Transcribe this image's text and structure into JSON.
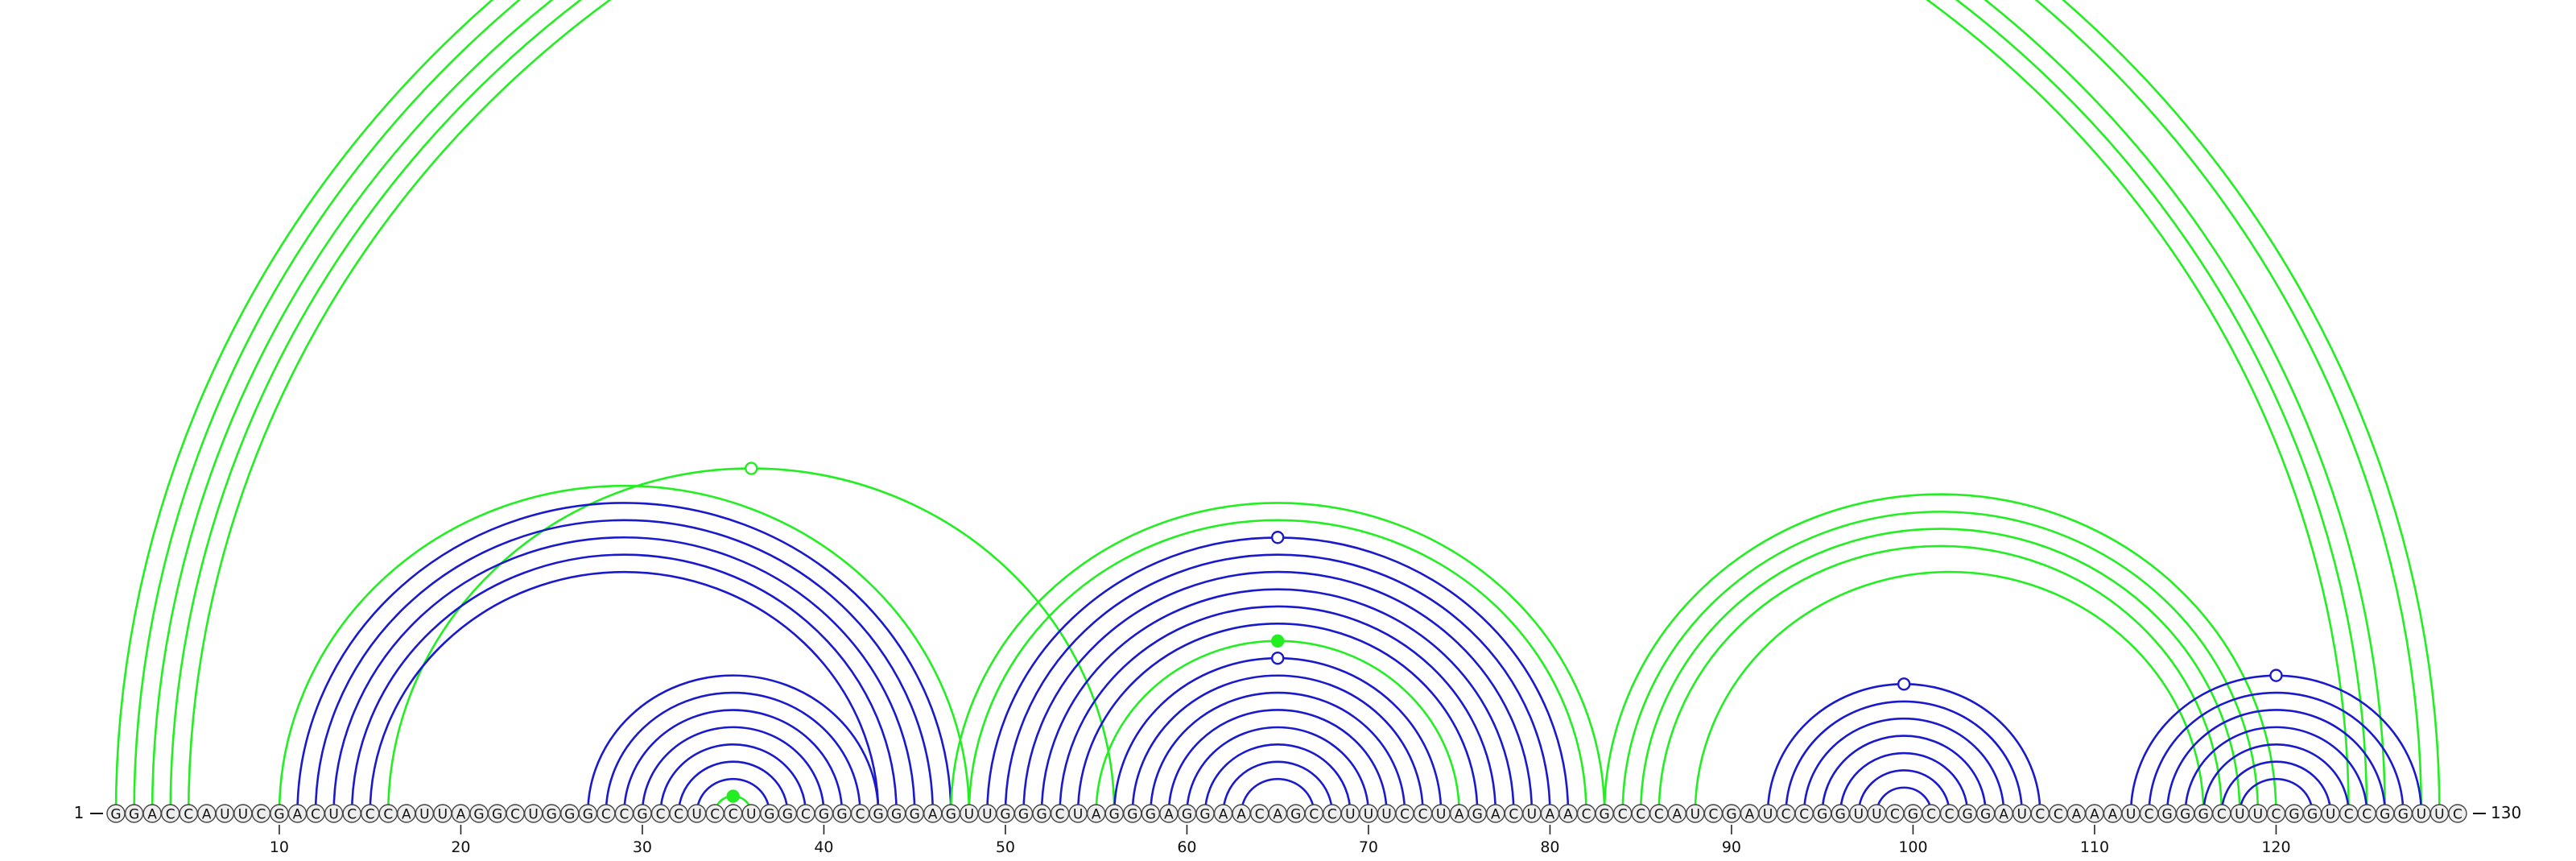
{
  "diagram": {
    "type": "rna-arc-diagram",
    "sequence": "GGACCAUUCGACUCCCAUUAGGCUGGGCCGCCUCCUGGCGGCGGGAGUUGGGCUAGGGAGGAACAGCCUUUCCUAGACUAACGCCCAUCGAUCCGGUUCGCCGGAUCCAAAUCGGGCUUCGGUCCGGUUC",
    "start_label": "1",
    "end_label": "130",
    "ticks": [
      10,
      20,
      30,
      40,
      50,
      60,
      70,
      80,
      90,
      100,
      110,
      120
    ],
    "colors": {
      "nested": "#1a1acc",
      "pseudoknot": "#22ee22",
      "nucleotide_fill": "#eeeeee",
      "nucleotide_stroke": "#444444",
      "text": "#111111"
    },
    "helices": [
      {
        "name": "outer-pseudoknot-helix",
        "color": "pseudoknot",
        "pairs": [
          [
            1,
            129
          ],
          [
            2,
            128
          ],
          [
            3,
            126
          ],
          [
            4,
            125
          ],
          [
            5,
            124
          ]
        ],
        "marker": "open"
      },
      {
        "name": "left-pseudoknot-helix",
        "color": "pseudoknot",
        "pairs": [
          [
            10,
            48
          ],
          [
            16,
            56
          ]
        ],
        "marker": "open"
      },
      {
        "name": "left-domain-helix",
        "color": "nested",
        "pairs": [
          [
            11,
            47
          ],
          [
            12,
            46
          ],
          [
            13,
            45
          ],
          [
            14,
            44
          ],
          [
            15,
            43
          ]
        ]
      },
      {
        "name": "hairpin-30s",
        "color": "nested",
        "pairs": [
          [
            27,
            43
          ],
          [
            28,
            42
          ],
          [
            29,
            41
          ],
          [
            30,
            40
          ],
          [
            31,
            39
          ],
          [
            32,
            38
          ],
          [
            33,
            37
          ]
        ]
      },
      {
        "name": "hairpin-30s-loop",
        "color": "pseudoknot",
        "pairs": [
          [
            34,
            36
          ]
        ],
        "marker": "filled"
      },
      {
        "name": "middle-outer-green",
        "color": "pseudoknot",
        "pairs": [
          [
            47,
            83
          ],
          [
            48,
            82
          ]
        ]
      },
      {
        "name": "middle-domain-helix",
        "color": "nested",
        "pairs": [
          [
            49,
            81
          ],
          [
            50,
            80
          ],
          [
            51,
            79
          ],
          [
            52,
            78
          ],
          [
            53,
            77
          ],
          [
            54,
            76
          ]
        ],
        "marker": "open"
      },
      {
        "name": "middle-inner-green",
        "color": "pseudoknot",
        "pairs": [
          [
            55,
            75
          ]
        ],
        "marker": "filled"
      },
      {
        "name": "middle-inner-helix",
        "color": "nested",
        "pairs": [
          [
            56,
            74
          ],
          [
            57,
            73
          ],
          [
            58,
            72
          ],
          [
            59,
            71
          ],
          [
            60,
            70
          ]
        ],
        "marker": "open"
      },
      {
        "name": "middle-hairpin",
        "color": "nested",
        "pairs": [
          [
            61,
            69
          ],
          [
            62,
            68
          ],
          [
            63,
            67
          ]
        ]
      },
      {
        "name": "right-pseudoknot-helix",
        "color": "pseudoknot",
        "pairs": [
          [
            83,
            120
          ],
          [
            84,
            119
          ],
          [
            85,
            118
          ],
          [
            86,
            117
          ],
          [
            88,
            116
          ]
        ]
      },
      {
        "name": "hairpin-100",
        "color": "nested",
        "pairs": [
          [
            92,
            107
          ],
          [
            93,
            106
          ],
          [
            94,
            105
          ],
          [
            95,
            104
          ],
          [
            96,
            103
          ],
          [
            97,
            102
          ],
          [
            98,
            101
          ]
        ],
        "marker": "open"
      },
      {
        "name": "hairpin-120",
        "color": "nested",
        "pairs": [
          [
            112,
            128
          ],
          [
            113,
            127
          ],
          [
            114,
            126
          ],
          [
            115,
            125
          ],
          [
            116,
            124
          ],
          [
            117,
            123
          ],
          [
            118,
            122
          ]
        ],
        "marker": "open"
      }
    ]
  }
}
